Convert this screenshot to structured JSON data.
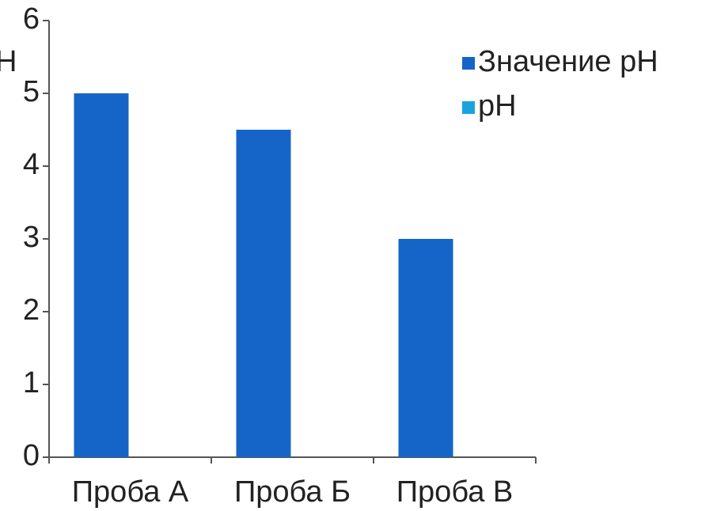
{
  "chart_data": {
    "type": "bar",
    "ylabel": "Н",
    "categories": [
      "Проба А",
      "Проба Б",
      "Проба В"
    ],
    "series": [
      {
        "name": "Значение рН",
        "color": "#1565c8",
        "values": [
          5,
          4.5,
          3
        ]
      },
      {
        "name": "рН",
        "color": "#1ba3e0",
        "values": [
          null,
          null,
          null
        ]
      }
    ],
    "ylim": [
      0,
      6
    ],
    "yticks": [
      0,
      1,
      2,
      3,
      4,
      5,
      6
    ],
    "legend": "right"
  }
}
